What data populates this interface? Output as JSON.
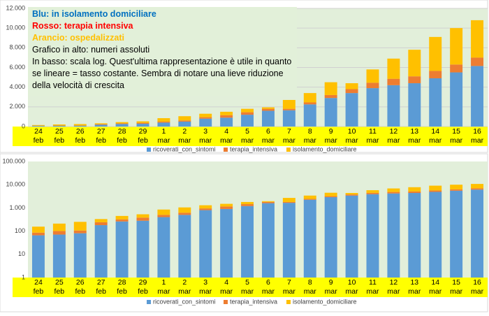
{
  "note": {
    "lines": [
      "Blu: in isolamento domiciliare",
      "Rosso: terapia intensiva",
      "Arancio: ospedalizzati",
      "Grafico in alto: numeri assoluti",
      "In basso: scala log. Quest'ultima rappresentazione è utile in quanto se lineare = tasso costante. Sembra di notare una lieve riduzione della velocità di crescita"
    ],
    "colors": [
      "#0070c0",
      "#ff0000",
      "#ffc000",
      "#000000",
      "#000000"
    ],
    "bold": [
      true,
      true,
      true,
      false,
      false
    ]
  },
  "chart_data": [
    {
      "type": "bar",
      "stacked": true,
      "log": false,
      "grid": true,
      "legend": "bottom",
      "categories": [
        "24 feb",
        "25 feb",
        "26 feb",
        "27 feb",
        "28 feb",
        "29 feb",
        "1 mar",
        "2 mar",
        "3 mar",
        "4 mar",
        "5 mar",
        "6 mar",
        "7 mar",
        "8 mar",
        "9 mar",
        "10 mar",
        "11 mar",
        "12 mar",
        "13 mar",
        "14 mar",
        "15 mar",
        "16 mar"
      ],
      "series": [
        {
          "name": "ricoverati_con_sintomi",
          "color": "#5b9bd5",
          "values": [
            65,
            70,
            80,
            180,
            260,
            280,
            400,
            500,
            800,
            900,
            1200,
            1600,
            1650,
            2250,
            2900,
            3400,
            3900,
            4200,
            4400,
            4900,
            5500,
            6150
          ]
        },
        {
          "name": "terapia_intensiva",
          "color": "#ed7d31",
          "values": [
            20,
            30,
            25,
            60,
            60,
            100,
            100,
            120,
            150,
            250,
            250,
            200,
            150,
            200,
            300,
            400,
            550,
            650,
            700,
            750,
            800,
            850
          ]
        },
        {
          "name": "isolamento_domiciliare",
          "color": "#ffc000",
          "values": [
            70,
            110,
            145,
            90,
            130,
            150,
            350,
            430,
            350,
            350,
            350,
            150,
            900,
            950,
            1300,
            600,
            1350,
            2050,
            2700,
            3450,
            3700,
            3800
          ]
        }
      ],
      "ylim": [
        0,
        12000
      ],
      "yticks": [
        0,
        {
          "value": 2000,
          "label": "2.000"
        },
        {
          "value": 4000,
          "label": "4.000"
        },
        {
          "value": 6000,
          "label": "6.000"
        },
        {
          "value": 8000,
          "label": "8.000"
        },
        {
          "value": 10000,
          "label": "10.000"
        },
        {
          "value": 12000,
          "label": "12.000"
        }
      ]
    },
    {
      "type": "bar",
      "stacked": true,
      "log": true,
      "grid": false,
      "legend": "bottom",
      "categories": [
        "24 feb",
        "25 feb",
        "26 feb",
        "27 feb",
        "28 feb",
        "29 feb",
        "1 mar",
        "2 mar",
        "3 mar",
        "4 mar",
        "5 mar",
        "6 mar",
        "7 mar",
        "8 mar",
        "9 mar",
        "10 mar",
        "11 mar",
        "12 mar",
        "13 mar",
        "14 mar",
        "15 mar",
        "16 mar"
      ],
      "series": [
        {
          "name": "ricoverati_con_sintomi",
          "color": "#5b9bd5",
          "values": [
            65,
            70,
            80,
            180,
            260,
            280,
            400,
            500,
            800,
            900,
            1200,
            1600,
            1650,
            2250,
            2900,
            3400,
            3900,
            4200,
            4400,
            4900,
            5500,
            6150
          ]
        },
        {
          "name": "terapia_intensiva",
          "color": "#ed7d31",
          "values": [
            20,
            30,
            25,
            60,
            60,
            100,
            100,
            120,
            150,
            250,
            250,
            200,
            150,
            200,
            300,
            400,
            550,
            650,
            700,
            750,
            800,
            850
          ]
        },
        {
          "name": "isolamento_domiciliare",
          "color": "#ffc000",
          "values": [
            70,
            110,
            145,
            90,
            130,
            150,
            350,
            430,
            350,
            350,
            350,
            150,
            900,
            950,
            1300,
            600,
            1350,
            2050,
            2700,
            3450,
            3700,
            3800
          ]
        }
      ],
      "ylim": [
        1,
        100000
      ],
      "yticks": [
        1,
        10,
        100,
        {
          "value": 1000,
          "label": "1.000"
        },
        {
          "value": 10000,
          "label": "10.000"
        },
        {
          "value": 100000,
          "label": "100.000"
        }
      ]
    }
  ]
}
